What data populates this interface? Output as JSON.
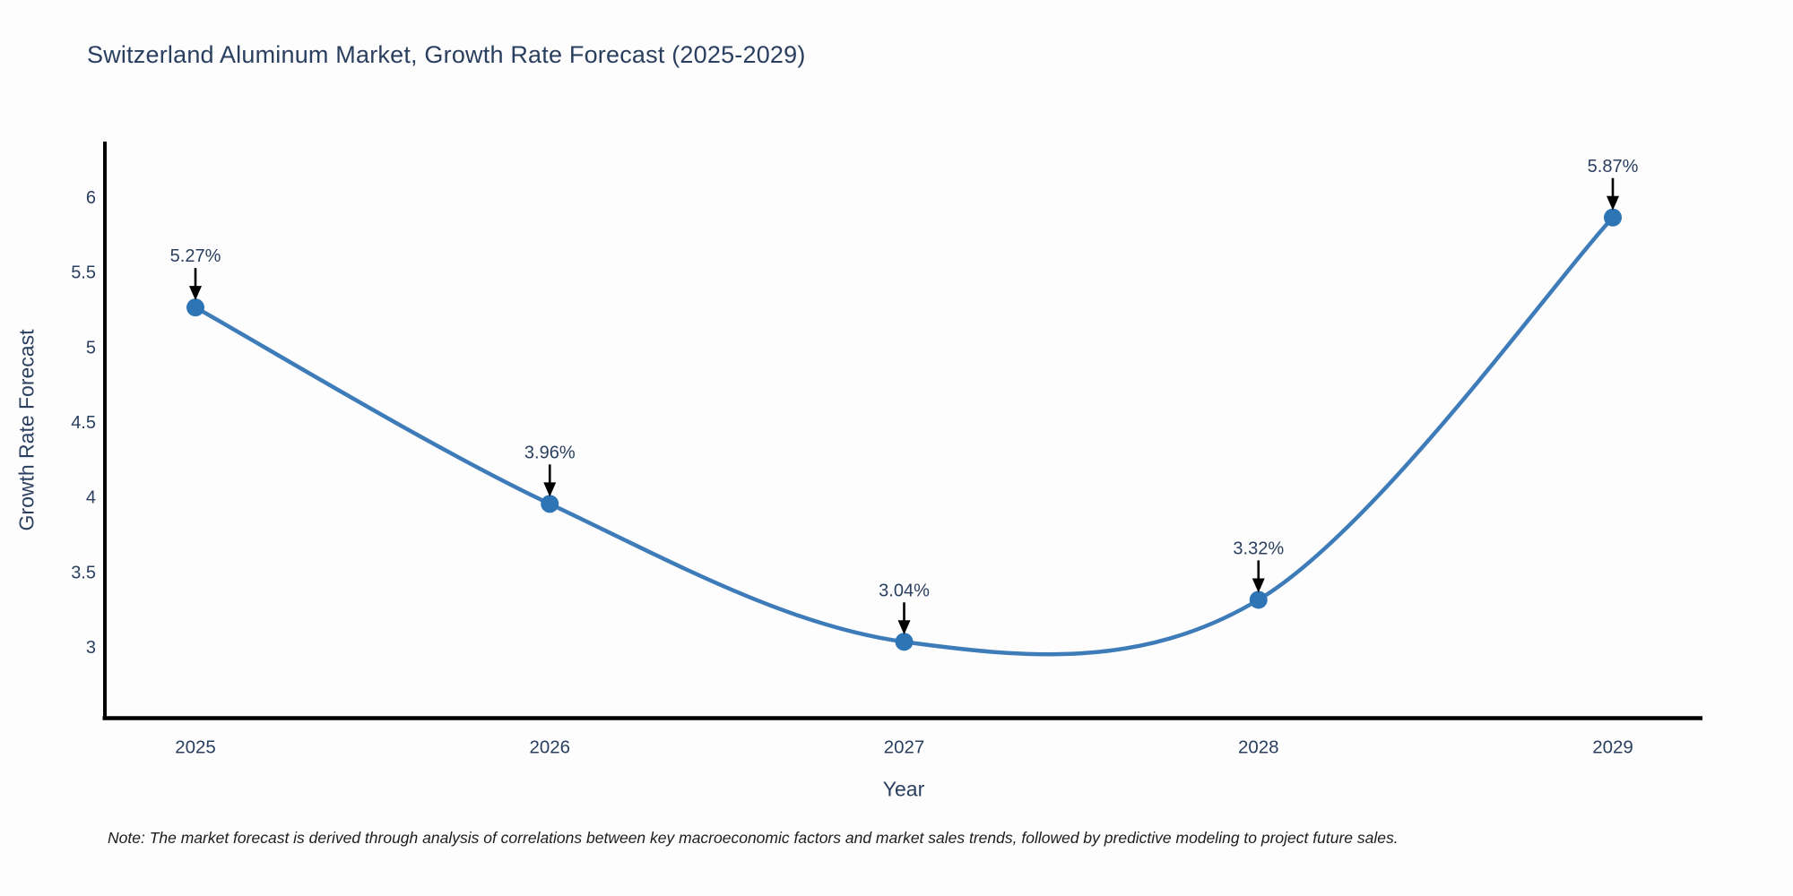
{
  "title": "Switzerland Aluminum Market, Growth Rate Forecast (2025-2029)",
  "note": "Note: The market forecast is derived through analysis of correlations between key macroeconomic factors and market sales trends, followed by predictive modeling to project future sales.",
  "chart_data": {
    "type": "line",
    "title": "Switzerland Aluminum Market, Growth Rate Forecast (2025-2029)",
    "categories": [
      "2025",
      "2026",
      "2027",
      "2028",
      "2029"
    ],
    "series": [
      {
        "name": "Growth Rate Forecast",
        "values": [
          5.27,
          3.96,
          3.04,
          3.32,
          5.87
        ]
      }
    ],
    "point_labels": [
      "5.27%",
      "3.96%",
      "3.04%",
      "3.32%",
      "5.87%"
    ],
    "xlabel": "Year",
    "ylabel": "Growth Rate Forecast",
    "yticks": [
      3,
      3.5,
      4,
      4.5,
      5,
      5.5,
      6
    ],
    "ylim": [
      2.53,
      6.38
    ],
    "grid": false,
    "legend": "none",
    "line_shape": "spline",
    "colors": {
      "line": "#3e7cb9",
      "marker": "#2e75b6",
      "axis": "#000000",
      "tick_text": "#2a3f5f",
      "annotation_text": "#2a3f5f",
      "arrow": "#000000",
      "background": "#fdfdfd"
    }
  }
}
